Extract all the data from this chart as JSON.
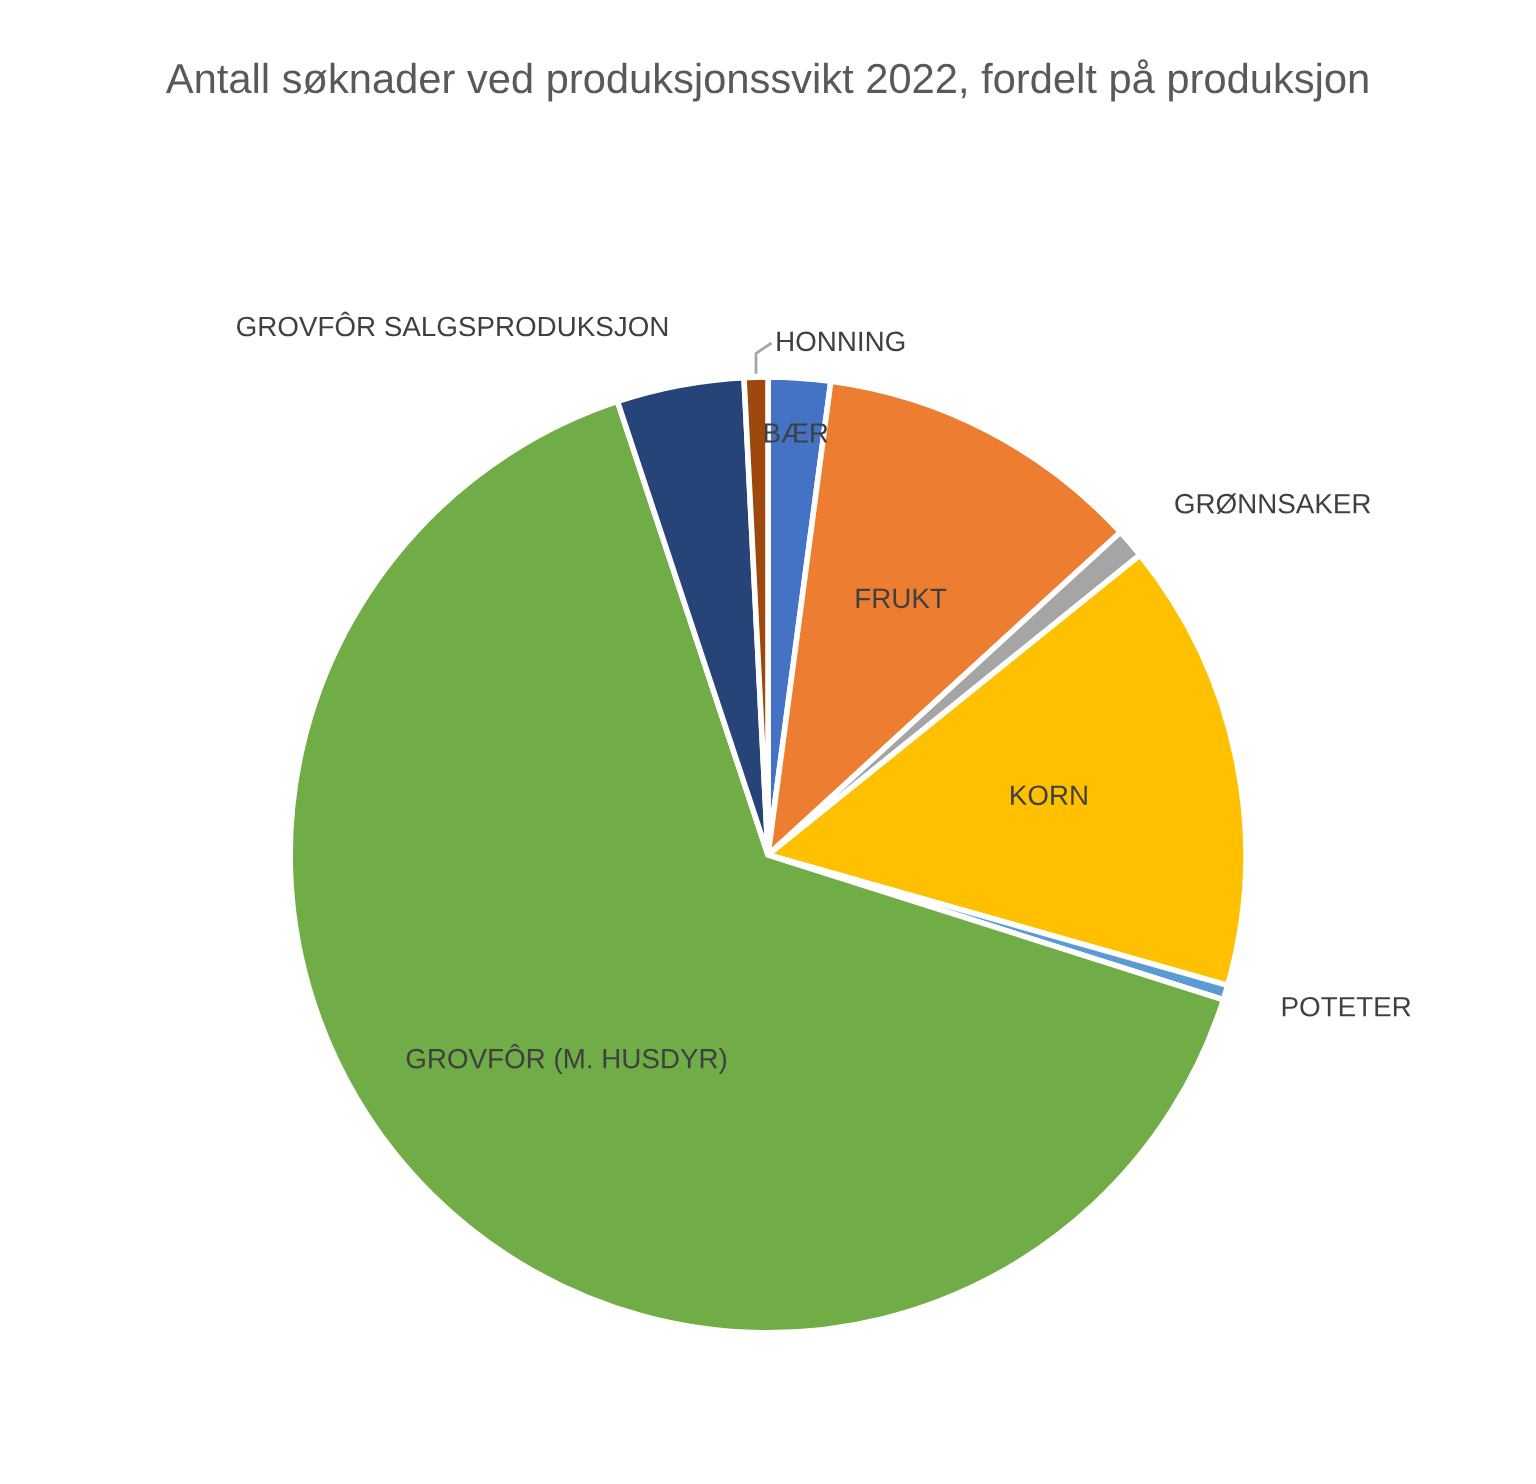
{
  "chart_data": {
    "type": "pie",
    "title": "Antall søknader ved produksjonssvikt 2022, fordelt på produksjon",
    "categories": [
      "BÆR",
      "FRUKT",
      "GRØNNSAKER",
      "KORN",
      "POTETER",
      "GROVFÔR (M. HUSDYR)",
      "GROVFÔR SALGSPRODUKSJON",
      "HONNING"
    ],
    "values": [
      2.1,
      11.1,
      1.0,
      15.2,
      0.5,
      65.0,
      4.3,
      0.8
    ],
    "colors": [
      "#4472c4",
      "#ed7d31",
      "#a5a5a5",
      "#ffc000",
      "#5b9bd5",
      "#70ad47",
      "#264478",
      "#9e480e"
    ]
  }
}
